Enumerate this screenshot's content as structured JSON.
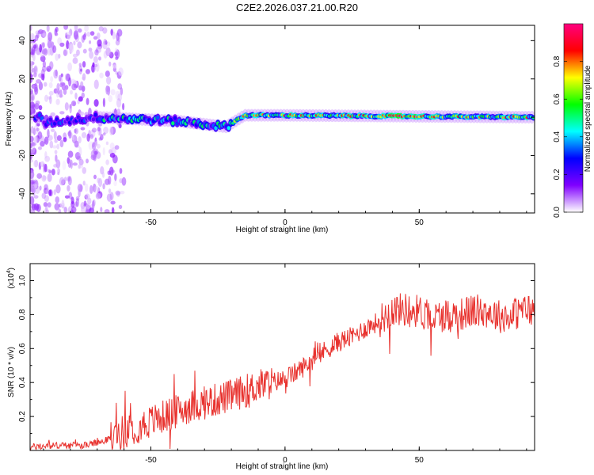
{
  "title": "C2E2.2026.037.21.00.R20",
  "chart_data": [
    {
      "type": "heatmap",
      "xlabel": "Height of straight line (km)",
      "ylabel": "Frequency (Hz)",
      "xlim": [
        -95,
        93
      ],
      "ylim": [
        -50,
        48
      ],
      "xticks": [
        -50,
        0,
        50
      ],
      "yticks": [
        -40,
        -20,
        0,
        20,
        40
      ],
      "grid": false,
      "ridge_frequency_hz": [
        {
          "x": -90,
          "f": -3
        },
        {
          "x": -70,
          "f": 0
        },
        {
          "x": -40,
          "f": -2
        },
        {
          "x": -22,
          "f": -5
        },
        {
          "x": -15,
          "f": 1
        },
        {
          "x": 0,
          "f": 1
        },
        {
          "x": 93,
          "f": 0
        }
      ],
      "colorbar": {
        "label": "Normalized spectral amplitude",
        "range": [
          0,
          1
        ],
        "ticks": [
          "0.0",
          "0.2",
          "0.4",
          "0.6",
          "0.8"
        ],
        "colors": [
          "#ffffff",
          "#8000ff",
          "#0000ff",
          "#00ffff",
          "#00ff00",
          "#ffff00",
          "#ff0000",
          "#ff0080"
        ]
      }
    },
    {
      "type": "line",
      "xlabel": "Height of straight line (km)",
      "ylabel": "SNR (10 * v/v)",
      "scale_label": "(x10",
      "scale_exp": "4",
      "scale_close": ")",
      "xlim": [
        -95,
        93
      ],
      "ylim": [
        0,
        1.1
      ],
      "xticks": [
        -50,
        0,
        50
      ],
      "yticks": [
        "0.2",
        "0.4",
        "0.6",
        "0.8",
        "1.0"
      ],
      "color": "#e8322e",
      "series": [
        {
          "x": [
            -95,
            -85,
            -75,
            -68,
            -62,
            -55,
            -50,
            -45,
            -40,
            -35,
            -30,
            -25,
            -20,
            -15,
            -10,
            -5,
            0,
            5,
            10,
            15,
            20,
            25,
            30,
            35,
            40,
            45,
            50,
            55,
            60,
            65,
            70,
            75,
            80,
            85,
            90,
            93
          ],
          "y": [
            0.02,
            0.03,
            0.03,
            0.05,
            0.1,
            0.14,
            0.17,
            0.2,
            0.23,
            0.26,
            0.28,
            0.3,
            0.32,
            0.35,
            0.38,
            0.4,
            0.42,
            0.47,
            0.53,
            0.59,
            0.64,
            0.67,
            0.72,
            0.76,
            0.83,
            0.83,
            0.82,
            0.78,
            0.8,
            0.8,
            0.82,
            0.82,
            0.79,
            0.8,
            0.83,
            0.82
          ]
        }
      ]
    }
  ]
}
